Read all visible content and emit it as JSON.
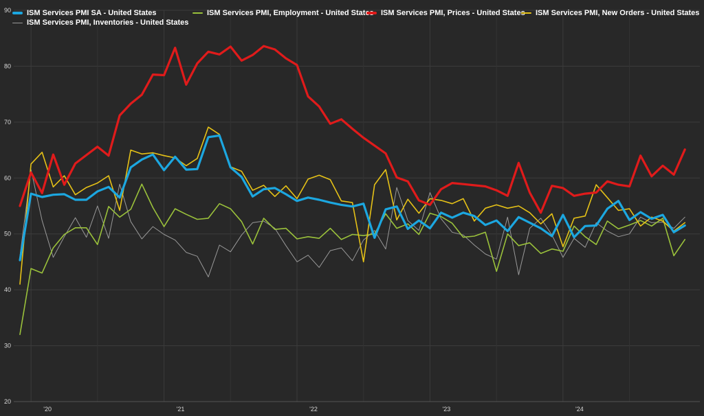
{
  "chart_data": {
    "type": "line",
    "ylim": [
      20,
      90
    ],
    "yticks": [
      20,
      30,
      40,
      50,
      60,
      70,
      80,
      90
    ],
    "xticks": [
      "'20",
      "'21",
      "'22",
      "'23",
      "'24"
    ],
    "x_start": "2019-12",
    "grid": true,
    "legend_position": "top",
    "series": [
      {
        "name": "ISM Services PMI SA - United States",
        "color": "#1ca7e0",
        "width": 3.2,
        "values": [
          45.3,
          57.2,
          56.6,
          57.0,
          57.1,
          56.1,
          56.1,
          57.6,
          58.4,
          56.5,
          61.9,
          63.3,
          64.2,
          61.4,
          63.8,
          61.5,
          61.6,
          67.3,
          67.6,
          61.9,
          60.2,
          56.7,
          58.0,
          58.2,
          57.1,
          55.9,
          56.5,
          56.1,
          55.6,
          55.2,
          54.9,
          55.4,
          49.3,
          54.4,
          54.9,
          50.9,
          52.4,
          51.0,
          53.8,
          52.9,
          53.8,
          53.2,
          51.6,
          52.4,
          50.5,
          53.0,
          52.0,
          51.0,
          49.6,
          53.4,
          49.4,
          51.4,
          51.5,
          54.5,
          55.9,
          52.5,
          53.9,
          52.7,
          53.4,
          50.3,
          51.5
        ]
      },
      {
        "name": "ISM Services PMI, Employment - United States",
        "color": "#9bc23b",
        "width": 1.6,
        "values": [
          32.0,
          43.8,
          43.0,
          47.5,
          49.9,
          51.1,
          51.1,
          48.1,
          54.9,
          53.0,
          54.4,
          58.9,
          54.7,
          51.3,
          54.5,
          53.5,
          52.6,
          52.8,
          55.4,
          54.5,
          52.2,
          48.2,
          52.8,
          50.8,
          51.0,
          49.1,
          49.5,
          49.2,
          51.0,
          49.0,
          49.9,
          49.7,
          50.0,
          53.6,
          51.0,
          51.8,
          49.9,
          53.7,
          53.1,
          51.9,
          49.4,
          49.6,
          50.3,
          43.3,
          50.0,
          47.9,
          48.4,
          46.5,
          47.3,
          46.9,
          51.4,
          49.5,
          48.1,
          52.3,
          50.9,
          51.6,
          52.4,
          51.4,
          52.8,
          46.1,
          49.0
        ]
      },
      {
        "name": "ISM Services PMI, Prices - United States",
        "color": "#e01b1b",
        "width": 3.2,
        "values": [
          55.0,
          61.0,
          57.3,
          64.2,
          58.8,
          62.6,
          64.1,
          65.6,
          64.0,
          71.2,
          73.3,
          74.9,
          78.5,
          78.4,
          83.3,
          76.7,
          80.5,
          82.6,
          82.1,
          83.5,
          81.0,
          82.0,
          83.6,
          83.0,
          81.4,
          80.2,
          74.6,
          72.8,
          69.7,
          70.5,
          68.8,
          67.2,
          65.8,
          64.4,
          60.1,
          59.4,
          56.0,
          55.2,
          58.0,
          59.1,
          58.9,
          58.7,
          58.5,
          57.8,
          56.8,
          62.7,
          57.4,
          53.8,
          58.6,
          58.2,
          56.8,
          57.2,
          57.4,
          59.4,
          58.8,
          58.5,
          64.0,
          60.3,
          62.2,
          60.6,
          65.1
        ]
      },
      {
        "name": "ISM Services PMI, New Orders - United States",
        "color": "#e6c217",
        "width": 1.6,
        "values": [
          41.0,
          62.5,
          64.6,
          58.4,
          60.4,
          57.0,
          58.3,
          59.1,
          60.4,
          54.2,
          65.0,
          64.3,
          64.5,
          64.0,
          63.6,
          62.2,
          63.5,
          69.1,
          67.8,
          62.0,
          61.2,
          57.8,
          58.7,
          56.7,
          58.6,
          56.3,
          59.8,
          60.5,
          59.7,
          55.9,
          55.6,
          45.0,
          58.8,
          61.5,
          52.5,
          56.2,
          53.7,
          56.3,
          56.0,
          55.4,
          56.3,
          52.3,
          54.6,
          55.2,
          54.6,
          55.0,
          53.8,
          51.8,
          53.6,
          47.7,
          52.8,
          53.2,
          58.8,
          56.5,
          54.2,
          54.5,
          51.4,
          53.0,
          52.3,
          50.5,
          52.0
        ]
      },
      {
        "name": "ISM Services PMI, Inventories - United States",
        "color": "#9a9a9a",
        "width": 1.0,
        "values": [
          46.0,
          61.5,
          52.4,
          45.8,
          49.5,
          52.9,
          49.4,
          55.0,
          49.2,
          58.9,
          52.2,
          49.1,
          51.3,
          49.9,
          48.9,
          46.7,
          46.0,
          42.3,
          48.0,
          46.8,
          49.8,
          52.0,
          52.3,
          51.0,
          47.9,
          45.0,
          46.2,
          44.0,
          47.0,
          47.5,
          45.2,
          48.9,
          50.6,
          47.3,
          58.3,
          52.4,
          50.6,
          57.4,
          52.7,
          50.3,
          49.8,
          48.0,
          46.4,
          45.5,
          53.0,
          42.7,
          51.0,
          52.8,
          49.8,
          45.8,
          49.2,
          47.6,
          52.0,
          50.5,
          49.5,
          50.0,
          53.0,
          52.0,
          52.1,
          51.0,
          53.0
        ]
      }
    ]
  }
}
